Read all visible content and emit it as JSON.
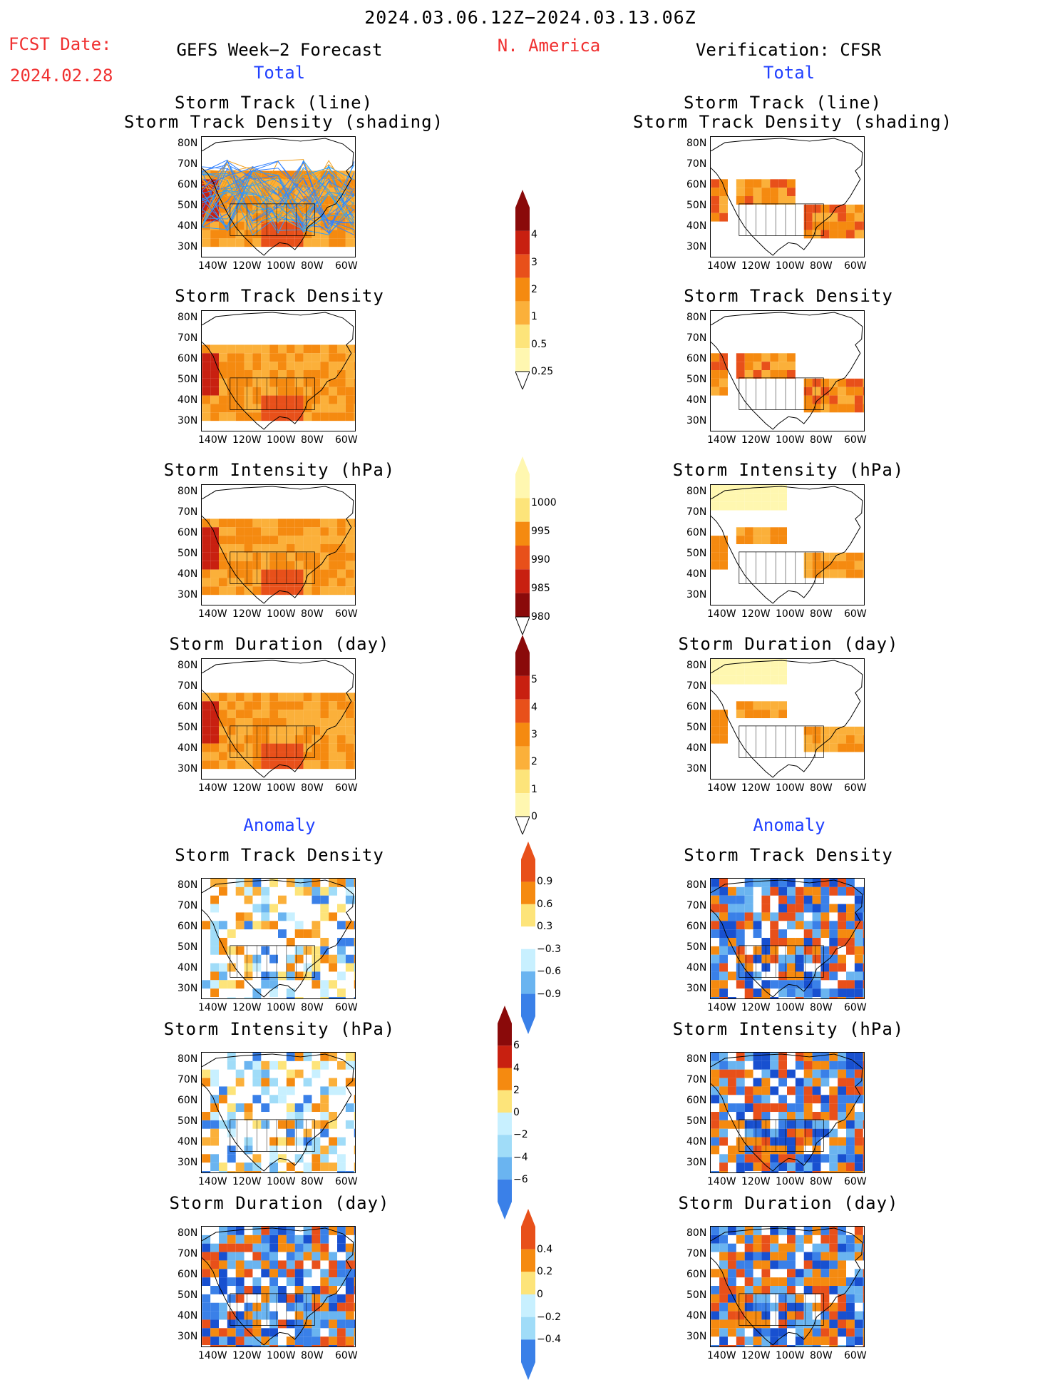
{
  "header": {
    "date_range": "2024.03.06.12Z−2024.03.13.06Z",
    "fcst_label": "FCST Date:",
    "fcst_date": "2024.02.28",
    "left_title": "GEFS Week−2 Forecast",
    "region": "N. America",
    "right_title": "Verification: CFSR"
  },
  "sections": {
    "total": "Total",
    "anomaly": "Anomaly"
  },
  "panel_titles": {
    "track_line_1": "Storm Track (line)",
    "track_line_2": "Storm Track Density (shading)",
    "density": "Storm Track Density",
    "intensity": "Storm Intensity (hPa)",
    "duration": "Storm Duration (day)"
  },
  "axes": {
    "lat_labels": [
      "80N",
      "70N",
      "60N",
      "50N",
      "40N",
      "30N"
    ],
    "lon_labels": [
      "140W",
      "120W",
      "100W",
      "80W",
      "60W"
    ]
  },
  "colorbars": {
    "density_total": [
      "4",
      "3",
      "2",
      "1",
      "0.5",
      "0.25"
    ],
    "intensity_total": [
      "1000",
      "995",
      "990",
      "985",
      "980"
    ],
    "duration_total": [
      "5",
      "4",
      "3",
      "2",
      "1",
      "0"
    ],
    "density_anom": [
      "0.9",
      "0.6",
      "0.3",
      "−0.3",
      "−0.6",
      "−0.9"
    ],
    "intensity_anom": [
      "6",
      "4",
      "2",
      "0",
      "−2",
      "−4",
      "−6"
    ],
    "duration_anom": [
      "0.4",
      "0.2",
      "0",
      "−0.2",
      "−0.4"
    ]
  },
  "colors": {
    "warm": [
      "#fff7b0",
      "#fde47a",
      "#fbb03a",
      "#f58a10",
      "#e8501a",
      "#c82010",
      "#8a0a0a"
    ],
    "cool": [
      "#c8f0ff",
      "#a0dcf8",
      "#6ab4f0",
      "#3a80e8",
      "#1850d0"
    ],
    "header_red": "#f03030",
    "header_blue": "#2040ff"
  }
}
